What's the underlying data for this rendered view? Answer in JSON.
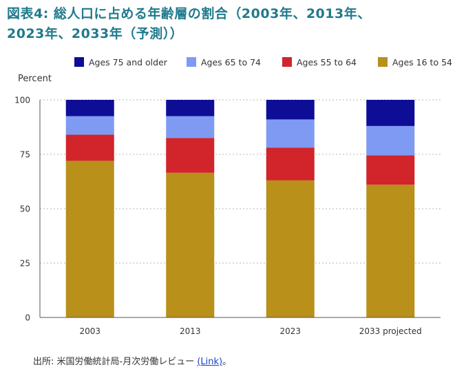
{
  "title": {
    "line1": "図表4: 総人口に占める年齢層の割合（2003年、2013年、",
    "line2": "2023年、2033年（予測））"
  },
  "chart_data": {
    "type": "bar",
    "stacked": true,
    "ylabel": "Percent",
    "xlabel": "",
    "ylim": [
      0,
      100
    ],
    "yticks": [
      0,
      25,
      50,
      75,
      100
    ],
    "grid": "horizontal dotted",
    "legend_position": "top",
    "categories": [
      "2003",
      "2013",
      "2023",
      "2033 projected"
    ],
    "series": [
      {
        "name": "Ages 16 to 54",
        "color": "#b8901a",
        "values": [
          72,
          66.5,
          63,
          61
        ]
      },
      {
        "name": "Ages 55 to 64",
        "color": "#d1242b",
        "values": [
          12,
          16,
          15,
          13.5
        ]
      },
      {
        "name": "Ages 65 to 74",
        "color": "#7f9af2",
        "values": [
          8.5,
          10,
          13,
          13.5
        ]
      },
      {
        "name": "Ages 75 and older",
        "color": "#0d0d96",
        "values": [
          7.5,
          7.5,
          9,
          12
        ]
      }
    ],
    "legend_order": [
      "Ages 75 and older",
      "Ages 65 to 74",
      "Ages 55 to 64",
      "Ages 16 to 54"
    ]
  },
  "source": {
    "prefix": "出所: 米国労働統計局-月次労働レビュー",
    "link_text": "(Link)",
    "suffix": "。"
  }
}
